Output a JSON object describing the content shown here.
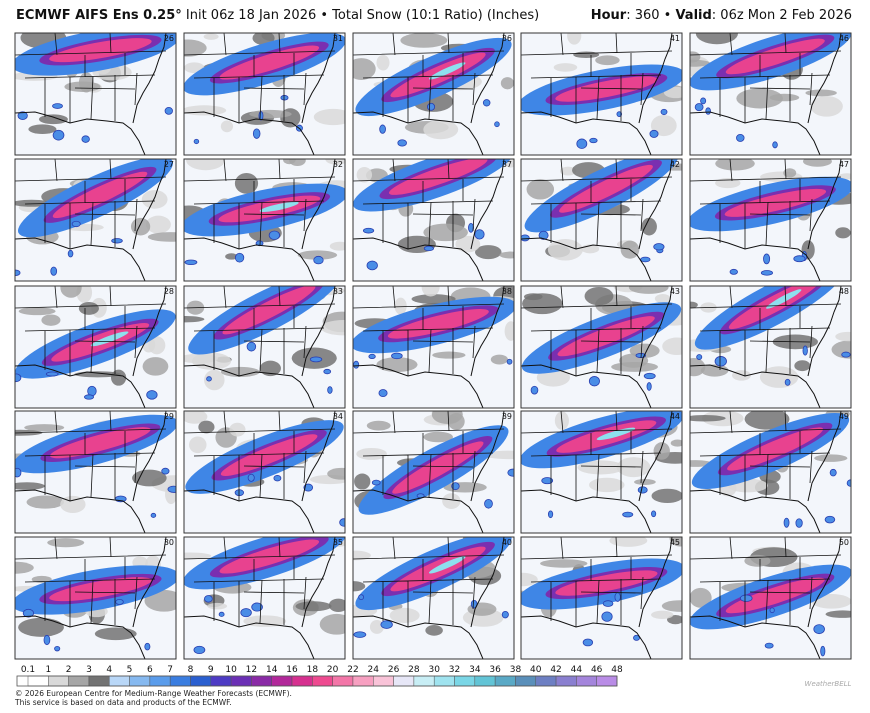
{
  "header": {
    "model": "ECMWF AIFS Ens 0.25°",
    "subtitle": "Init 06z 18 Jan 2026 • Total Snow (10:1 Ratio) (Inches)",
    "hour_label": "Hour",
    "hour": ": 360 • ",
    "valid_label": "Valid",
    "valid": ": 06z Mon 2 Feb 2026"
  },
  "members": [
    26,
    31,
    36,
    41,
    46,
    27,
    32,
    37,
    42,
    47,
    28,
    33,
    38,
    43,
    48,
    29,
    34,
    39,
    44,
    49,
    30,
    35,
    40,
    45,
    50
  ],
  "colorbar": {
    "ticks": [
      0.1,
      1,
      2,
      3,
      4,
      5,
      6,
      7,
      8,
      9,
      10,
      12,
      14,
      16,
      18,
      20,
      22,
      24,
      26,
      28,
      30,
      32,
      34,
      36,
      38,
      40,
      42,
      44,
      46,
      48
    ],
    "colors": [
      "#ffffff",
      "#d9d9d9",
      "#a6a6a6",
      "#737373",
      "#b9d7f7",
      "#86b9f0",
      "#5a9ceb",
      "#3a7de0",
      "#2a5fd0",
      "#4d3bc4",
      "#6b2fb5",
      "#8a2aa6",
      "#b2289a",
      "#d6308f",
      "#ee4a90",
      "#f376a8",
      "#f7a0c1",
      "#f9c3d8",
      "#e7e7f7",
      "#c8eef5",
      "#9fe3ef",
      "#7ad6e6",
      "#62c4d6",
      "#5aa9c6",
      "#5a8fba",
      "#6d7fc3",
      "#8a7fd0",
      "#a485dc",
      "#b98ce6"
    ]
  },
  "footer": {
    "copyright": "© 2026 European Centre for Medium-Range Weather Forecasts (ECMWF).",
    "notice": "This service is based on data and products of the ECMWF.",
    "logo": "WeatherBELL"
  }
}
